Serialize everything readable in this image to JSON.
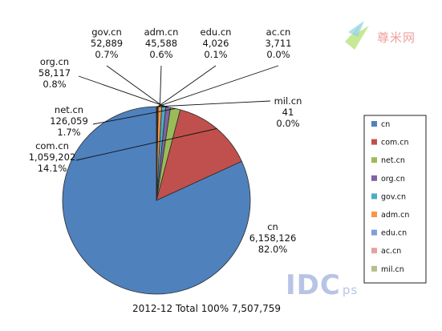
{
  "chart_data": {
    "type": "pie",
    "caption": "2012-12 Total 100%  7,507,759",
    "slices": [
      {
        "name": "cn",
        "count": "6,158,126",
        "value": 82.0,
        "pct": "82.0%",
        "color": "#4f81bd"
      },
      {
        "name": "com.cn",
        "count": "1,059,202",
        "value": 14.1,
        "pct": "14.1%",
        "color": "#c0504d"
      },
      {
        "name": "net.cn",
        "count": "126,059",
        "value": 1.7,
        "pct": "1.7%",
        "color": "#9bbb59"
      },
      {
        "name": "org.cn",
        "count": "58,117",
        "value": 0.8,
        "pct": "0.8%",
        "color": "#8064a2"
      },
      {
        "name": "gov.cn",
        "count": "52,889",
        "value": 0.7,
        "pct": "0.7%",
        "color": "#4bacc6"
      },
      {
        "name": "adm.cn",
        "count": "45,588",
        "value": 0.6,
        "pct": "0.6%",
        "color": "#f79646"
      },
      {
        "name": "edu.cn",
        "count": "4,026",
        "value": 0.1,
        "pct": "0.1%",
        "color": "#7f9fd6"
      },
      {
        "name": "ac.cn",
        "count": "3,711",
        "value": 0.0,
        "pct": "0.0%",
        "color": "#e6a0a0"
      },
      {
        "name": "mil.cn",
        "count": "41",
        "value": 0.0,
        "pct": "0.0%",
        "color": "#b4c08c"
      }
    ],
    "legend_position": "right"
  },
  "watermarks": {
    "site_logo": "尊米网",
    "idc_mark": "IDC",
    "idc_sub": "ps"
  }
}
